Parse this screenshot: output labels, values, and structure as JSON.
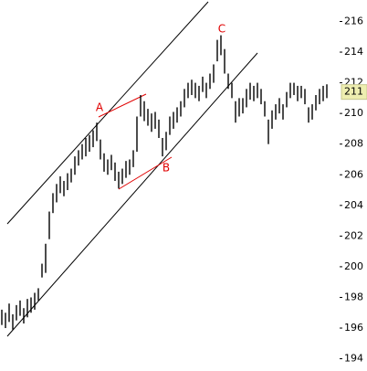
{
  "chart_data": {
    "type": "hilo",
    "color": "#000000",
    "ylim": [
      193.2,
      217.4
    ],
    "yticks": [
      194,
      196,
      198,
      200,
      202,
      204,
      206,
      208,
      210,
      212,
      214,
      216
    ],
    "last_price": {
      "value": 211.4,
      "label": "211"
    },
    "annotations": [
      "A",
      "B",
      "C"
    ],
    "high": [
      197.2,
      197.0,
      197.6,
      196.9,
      197.5,
      197.8,
      197.3,
      197.9,
      198.0,
      198.3,
      198.6,
      200.2,
      201.5,
      203.6,
      204.8,
      205.4,
      205.9,
      205.6,
      206.1,
      206.4,
      207.2,
      207.6,
      208.0,
      208.4,
      208.6,
      208.9,
      209.4,
      208.3,
      207.4,
      207.0,
      207.3,
      206.8,
      206.2,
      206.4,
      206.9,
      207.0,
      207.6,
      209.8,
      211.2,
      210.8,
      210.3,
      210.0,
      210.1,
      209.6,
      208.4,
      208.8,
      209.8,
      210.1,
      210.4,
      210.8,
      211.6,
      212.0,
      212.2,
      212.0,
      211.8,
      212.4,
      212.0,
      212.6,
      213.2,
      214.8,
      215.1,
      214.2,
      212.6,
      212.0,
      210.8,
      211.0,
      211.0,
      211.6,
      212.0,
      211.8,
      212.0,
      211.6,
      210.8,
      209.6,
      210.2,
      210.6,
      211.0,
      210.6,
      211.4,
      212.0,
      212.0,
      211.8,
      211.8,
      211.6,
      210.4,
      210.6,
      211.2,
      211.6,
      211.8,
      211.9
    ],
    "low": [
      196.2,
      196.0,
      196.4,
      195.9,
      196.5,
      196.8,
      196.3,
      196.7,
      197.0,
      197.2,
      197.8,
      199.3,
      199.6,
      201.8,
      203.5,
      204.2,
      204.8,
      204.6,
      205.0,
      205.5,
      206.0,
      206.6,
      207.0,
      207.2,
      207.5,
      207.8,
      208.2,
      207.0,
      206.2,
      206.0,
      206.3,
      205.6,
      205.1,
      205.4,
      205.8,
      206.0,
      206.5,
      207.5,
      209.8,
      209.5,
      209.2,
      208.8,
      209.0,
      208.4,
      207.2,
      207.6,
      208.6,
      209.0,
      209.4,
      209.8,
      210.4,
      211.0,
      211.2,
      211.0,
      210.8,
      211.4,
      211.0,
      211.6,
      212.0,
      213.4,
      213.8,
      212.6,
      211.6,
      211.0,
      209.4,
      209.8,
      210.0,
      210.4,
      210.9,
      210.8,
      211.0,
      210.6,
      209.8,
      208.0,
      209.0,
      209.6,
      210.0,
      209.6,
      210.4,
      211.0,
      211.2,
      210.8,
      211.0,
      210.6,
      209.4,
      209.6,
      210.2,
      210.6,
      210.8,
      211.0
    ]
  }
}
